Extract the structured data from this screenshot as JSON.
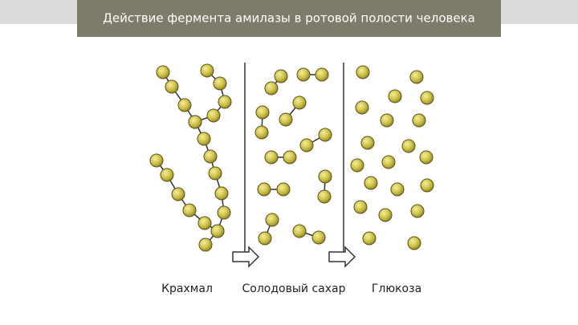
{
  "header": {
    "title": "Действие фермента амилазы в ротовой полости человека"
  },
  "labels": [
    "Крахмал",
    "Солодовый сахар",
    "Глюкоза"
  ]
}
